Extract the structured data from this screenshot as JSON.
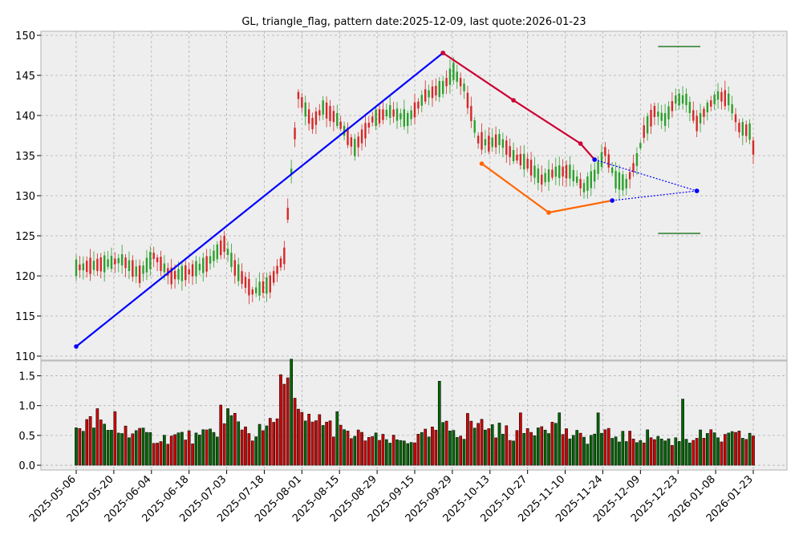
{
  "chart_data": {
    "type": "candlestick",
    "title": "GL, triangle_flag, pattern date:2025-12-09, last quote:2026-01-23",
    "x_tick_labels": [
      "2025-05-06",
      "2025-05-20",
      "2025-06-04",
      "2025-06-18",
      "2025-07-03",
      "2025-07-18",
      "2025-08-01",
      "2025-08-15",
      "2025-08-29",
      "2025-09-15",
      "2025-09-29",
      "2025-10-13",
      "2025-10-27",
      "2025-11-10",
      "2025-11-24",
      "2025-12-09",
      "2025-12-23",
      "2026-01-08",
      "2026-01-23"
    ],
    "price_panel": {
      "ylim": [
        109.5,
        150.5
      ],
      "y_ticks": [
        110,
        115,
        120,
        125,
        130,
        135,
        140,
        145,
        150
      ],
      "grid": true
    },
    "volume_panel": {
      "ylim": [
        -0.08,
        1.75
      ],
      "y_ticks": [
        0.0,
        0.5,
        1.0,
        1.5
      ],
      "y_tick_labels": [
        "0.0",
        "0.5",
        "1.0",
        "1.5"
      ],
      "grid": true
    },
    "up_color": "#2ca02c",
    "down_color": "#d62728",
    "anchors": [
      [
        0,
        121.0
      ],
      [
        8,
        121.5
      ],
      [
        13,
        122.0
      ],
      [
        18,
        120.2
      ],
      [
        22,
        122.5
      ],
      [
        27,
        120.0
      ],
      [
        32,
        120.5
      ],
      [
        37,
        121.5
      ],
      [
        42,
        124.0
      ],
      [
        45,
        121.0
      ],
      [
        50,
        118.0
      ],
      [
        55,
        119.0
      ],
      [
        59,
        122.5
      ],
      [
        61,
        133.0
      ],
      [
        63,
        142.5
      ],
      [
        67,
        139.0
      ],
      [
        70,
        141.0
      ],
      [
        74,
        139.5
      ],
      [
        79,
        136.0
      ],
      [
        84,
        139.5
      ],
      [
        89,
        140.5
      ],
      [
        94,
        139.5
      ],
      [
        99,
        142.5
      ],
      [
        104,
        143.5
      ],
      [
        107,
        145.5
      ],
      [
        110,
        143.5
      ],
      [
        114,
        137.0
      ],
      [
        117,
        136.5
      ],
      [
        120,
        137.0
      ],
      [
        124,
        135.0
      ],
      [
        128,
        134.0
      ],
      [
        132,
        132.0
      ],
      [
        136,
        133.0
      ],
      [
        140,
        133.0
      ],
      [
        144,
        131.0
      ],
      [
        147,
        132.5
      ],
      [
        150,
        135.5
      ],
      [
        153,
        132.0
      ],
      [
        156,
        131.5
      ],
      [
        159,
        134.5
      ],
      [
        161,
        138.0
      ],
      [
        164,
        140.5
      ],
      [
        167,
        139.5
      ],
      [
        170,
        142.0
      ],
      [
        173,
        142.0
      ],
      [
        176,
        139.0
      ],
      [
        179,
        141.0
      ],
      [
        182,
        142.5
      ],
      [
        185,
        142.0
      ],
      [
        188,
        138.5
      ],
      [
        191,
        138.0
      ],
      [
        192,
        136.0
      ]
    ],
    "volume_anchors": [
      [
        0,
        0.65
      ],
      [
        5,
        0.7
      ],
      [
        10,
        0.55
      ],
      [
        15,
        0.6
      ],
      [
        20,
        0.48
      ],
      [
        25,
        0.45
      ],
      [
        30,
        0.5
      ],
      [
        35,
        0.45
      ],
      [
        40,
        0.6
      ],
      [
        45,
        0.8
      ],
      [
        50,
        0.5
      ],
      [
        55,
        0.65
      ],
      [
        60,
        1.35
      ],
      [
        63,
        0.8
      ],
      [
        67,
        0.7
      ],
      [
        72,
        0.65
      ],
      [
        77,
        0.5
      ],
      [
        82,
        0.48
      ],
      [
        87,
        0.42
      ],
      [
        92,
        0.4
      ],
      [
        97,
        0.45
      ],
      [
        102,
        0.55
      ],
      [
        105,
        0.62
      ],
      [
        110,
        0.55
      ],
      [
        114,
        0.7
      ],
      [
        119,
        0.6
      ],
      [
        124,
        0.52
      ],
      [
        129,
        0.6
      ],
      [
        133,
        0.75
      ],
      [
        138,
        0.55
      ],
      [
        143,
        0.45
      ],
      [
        148,
        0.5
      ],
      [
        153,
        0.5
      ],
      [
        158,
        0.45
      ],
      [
        163,
        0.5
      ],
      [
        168,
        0.4
      ],
      [
        173,
        0.45
      ],
      [
        178,
        0.5
      ],
      [
        183,
        0.45
      ],
      [
        188,
        0.48
      ],
      [
        192,
        0.5
      ]
    ],
    "volume_spikes": [
      [
        6,
        0.95
      ],
      [
        11,
        0.9
      ],
      [
        41,
        1.01
      ],
      [
        43,
        0.95
      ],
      [
        57,
        0.78
      ],
      [
        58,
        1.52
      ],
      [
        59,
        1.36
      ],
      [
        61,
        1.78
      ],
      [
        69,
        0.85
      ],
      [
        74,
        0.9
      ],
      [
        103,
        1.41
      ],
      [
        111,
        0.87
      ],
      [
        126,
        0.88
      ],
      [
        137,
        0.88
      ],
      [
        148,
        0.88
      ],
      [
        172,
        1.11
      ]
    ],
    "overlays": [
      {
        "points": [
          [
            0,
            111.2
          ],
          [
            104,
            147.8
          ]
        ],
        "color": "#0000ff",
        "style": "solid"
      },
      {
        "points": [
          [
            104,
            147.8
          ],
          [
            124,
            141.9
          ],
          [
            143,
            136.5
          ],
          [
            147,
            134.5
          ]
        ],
        "color": "#cc0033",
        "style": "solid"
      },
      {
        "points": [
          [
            115,
            134.0
          ],
          [
            134,
            127.9
          ]
        ],
        "color": "#ff6600",
        "style": "solid"
      },
      {
        "points": [
          [
            134,
            127.9
          ],
          [
            152,
            129.4
          ]
        ],
        "color": "#ff6600",
        "style": "solid"
      },
      {
        "points": [
          [
            147,
            134.5
          ],
          [
            176,
            130.6
          ]
        ],
        "color": "#0000ff",
        "style": "dotted"
      },
      {
        "points": [
          [
            152,
            129.4
          ],
          [
            176,
            130.6
          ]
        ],
        "color": "#0000ff",
        "style": "dotted"
      }
    ],
    "targets": [
      {
        "y": 148.6,
        "x_range": [
          165,
          177
        ],
        "color": "#006600"
      },
      {
        "y": 125.3,
        "x_range": [
          165,
          177
        ],
        "color": "#006600"
      }
    ]
  }
}
